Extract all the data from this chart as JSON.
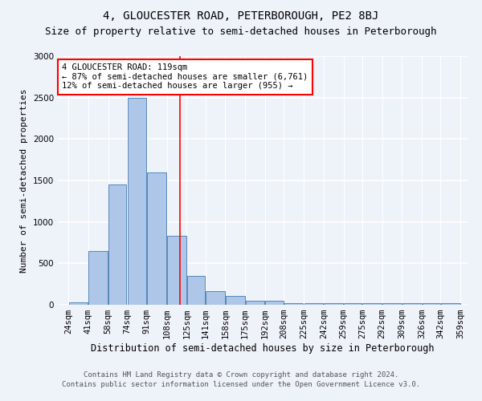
{
  "title": "4, GLOUCESTER ROAD, PETERBOROUGH, PE2 8BJ",
  "subtitle": "Size of property relative to semi-detached houses in Peterborough",
  "xlabel": "Distribution of semi-detached houses by size in Peterborough",
  "ylabel": "Number of semi-detached properties",
  "footnote1": "Contains HM Land Registry data © Crown copyright and database right 2024.",
  "footnote2": "Contains public sector information licensed under the Open Government Licence v3.0.",
  "bin_edges": [
    24,
    41,
    58,
    74,
    91,
    108,
    125,
    141,
    158,
    175,
    192,
    208,
    225,
    242,
    259,
    275,
    292,
    309,
    326,
    342,
    359
  ],
  "bar_heights": [
    30,
    650,
    1450,
    2500,
    1600,
    830,
    350,
    160,
    110,
    50,
    50,
    20,
    20,
    20,
    20,
    15,
    15,
    15,
    15,
    15
  ],
  "bar_color": "#aec6e8",
  "bar_edge_color": "#5588bb",
  "bg_color": "#eef2f9",
  "grid_color": "#ffffff",
  "property_line_x": 119,
  "property_line_color": "red",
  "annotation_line1": "4 GLOUCESTER ROAD: 119sqm",
  "annotation_line2": "← 87% of semi-detached houses are smaller (6,761)",
  "annotation_line3": "12% of semi-detached houses are larger (955) →",
  "annotation_box_color": "white",
  "annotation_box_edge": "red",
  "ylim": [
    0,
    3000
  ],
  "xlim_left": 15,
  "xlim_right": 365,
  "title_fontsize": 10,
  "subtitle_fontsize": 9,
  "xlabel_fontsize": 8.5,
  "ylabel_fontsize": 8,
  "tick_fontsize": 7.5,
  "annotation_fontsize": 7.5,
  "footnote_fontsize": 6.5
}
